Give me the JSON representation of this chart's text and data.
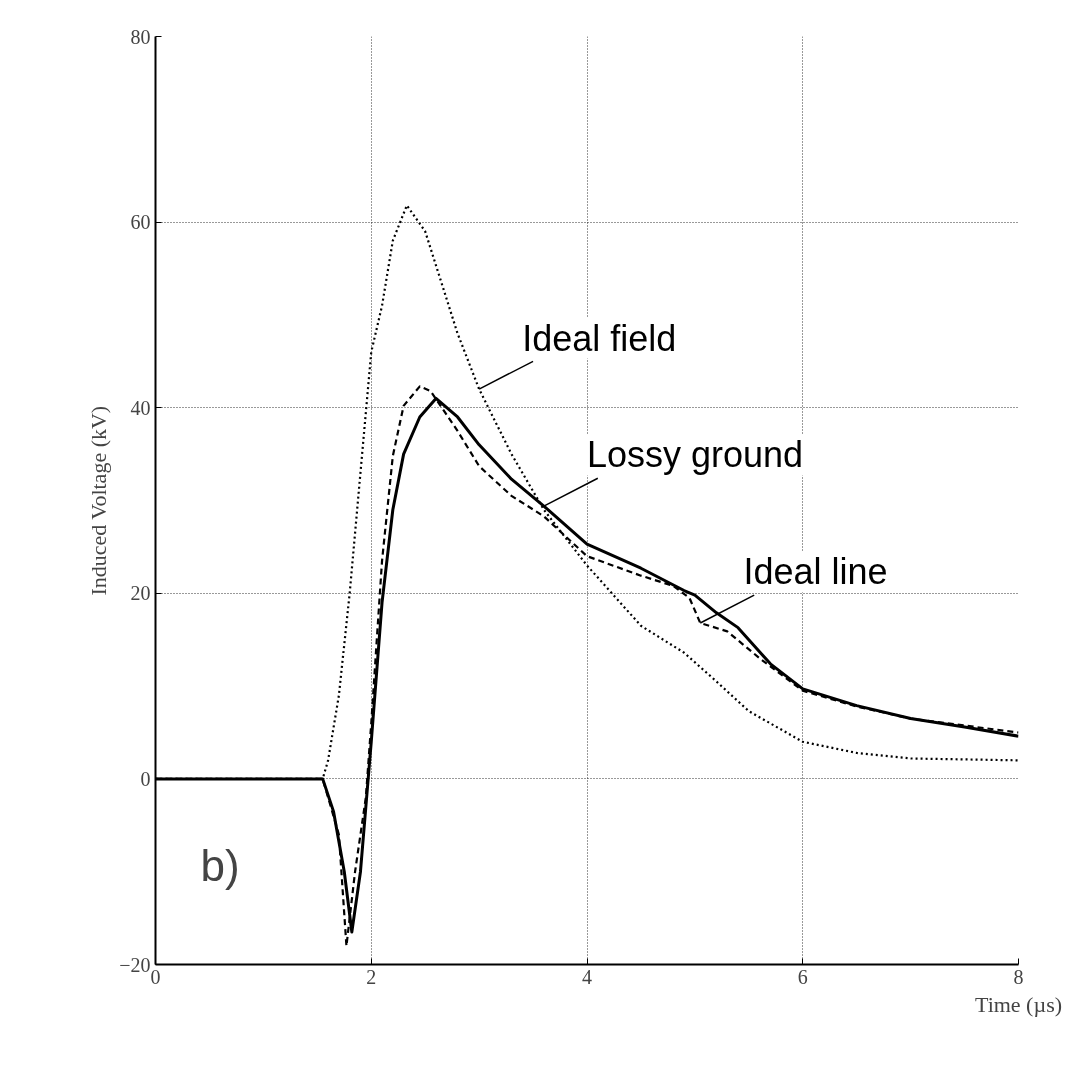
{
  "chart_data": {
    "type": "line",
    "xlabel": "Time (µs)",
    "ylabel": "Induced Voltage (kV)",
    "xlim": [
      0,
      8
    ],
    "ylim": [
      -20,
      80
    ],
    "xticks": [
      0,
      2,
      4,
      6,
      8
    ],
    "yticks": [
      -20,
      0,
      20,
      40,
      60,
      80
    ],
    "grid": true,
    "series": [
      {
        "name": "Ideal field",
        "color": "#000000",
        "line_style": "dotted",
        "x": [
          0,
          1.55,
          1.6,
          1.7,
          1.8,
          1.9,
          2.0,
          2.1,
          2.2,
          2.33,
          2.5,
          2.8,
          3.0,
          3.3,
          3.6,
          4.0,
          4.5,
          4.9,
          5.2,
          5.5,
          6.0,
          6.5,
          7.0,
          8.0
        ],
        "values": [
          0,
          0,
          2,
          9,
          20,
          33,
          46,
          51,
          58,
          61.8,
          59,
          48,
          42,
          35,
          29,
          23,
          16.5,
          13.6,
          10.5,
          7.3,
          4,
          2.8,
          2.2,
          2.0
        ]
      },
      {
        "name": "Lossy ground",
        "color": "#000000",
        "line_style": "solid",
        "x": [
          0,
          1.55,
          1.65,
          1.75,
          1.82,
          1.9,
          2.0,
          2.1,
          2.2,
          2.3,
          2.45,
          2.6,
          2.8,
          3.0,
          3.3,
          3.6,
          4.0,
          4.5,
          4.9,
          5.0,
          5.2,
          5.4,
          5.7,
          6.0,
          6.5,
          7.0,
          7.5,
          8.0
        ],
        "values": [
          0,
          0,
          -3.5,
          -10,
          -16.5,
          -10,
          4,
          19,
          29,
          35,
          39,
          41,
          39,
          36,
          32.3,
          29.4,
          25.3,
          22.7,
          20.3,
          19.8,
          17.9,
          16.3,
          12.4,
          9.7,
          7.9,
          6.5,
          5.6,
          4.6
        ]
      },
      {
        "name": "Ideal line",
        "color": "#000000",
        "line_style": "dashed",
        "x": [
          0,
          1.55,
          1.7,
          1.77,
          1.85,
          1.95,
          2.0,
          2.1,
          2.2,
          2.3,
          2.45,
          2.55,
          2.8,
          3.0,
          3.3,
          3.6,
          4.0,
          4.5,
          4.8,
          4.95,
          5.05,
          5.3,
          5.6,
          6.0,
          6.5,
          7.0,
          8.0
        ],
        "values": [
          0,
          0,
          -6,
          -18,
          -10,
          -2,
          6,
          23.5,
          34.8,
          40.2,
          42.3,
          41.8,
          37.5,
          33.7,
          30.5,
          28.3,
          24,
          21.9,
          20.8,
          19.5,
          16.8,
          15.9,
          13,
          9.5,
          7.8,
          6.5,
          5.0
        ]
      }
    ],
    "annotations": [
      "b)"
    ]
  }
}
